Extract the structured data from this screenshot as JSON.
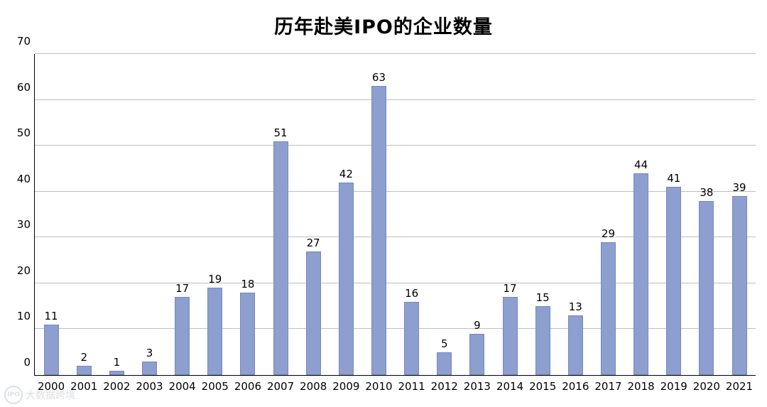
{
  "title": "历年赴美IPO的企业数量",
  "watermark": {
    "logo_text": "IPO",
    "label": "大数据跨境"
  },
  "chart_data": {
    "type": "bar",
    "title": "历年赴美IPO的企业数量",
    "categories": [
      "2000",
      "2001",
      "2002",
      "2003",
      "2004",
      "2005",
      "2006",
      "2007",
      "2008",
      "2009",
      "2010",
      "2011",
      "2012",
      "2013",
      "2014",
      "2015",
      "2016",
      "2017",
      "2018",
      "2019",
      "2020",
      "2021"
    ],
    "values": [
      11,
      2,
      1,
      3,
      17,
      19,
      18,
      51,
      27,
      42,
      63,
      16,
      5,
      9,
      17,
      15,
      13,
      29,
      44,
      41,
      38,
      39
    ],
    "xlabel": "",
    "ylabel": "",
    "ylim": [
      0,
      70
    ],
    "ytick_step": 10,
    "yticks": [
      0,
      10,
      20,
      30,
      40,
      50,
      60,
      70
    ],
    "grid": true,
    "legend_position": "none",
    "bar_color": "#8C9FCE",
    "bar_border_color": "#7589BC",
    "data_labels": true
  }
}
